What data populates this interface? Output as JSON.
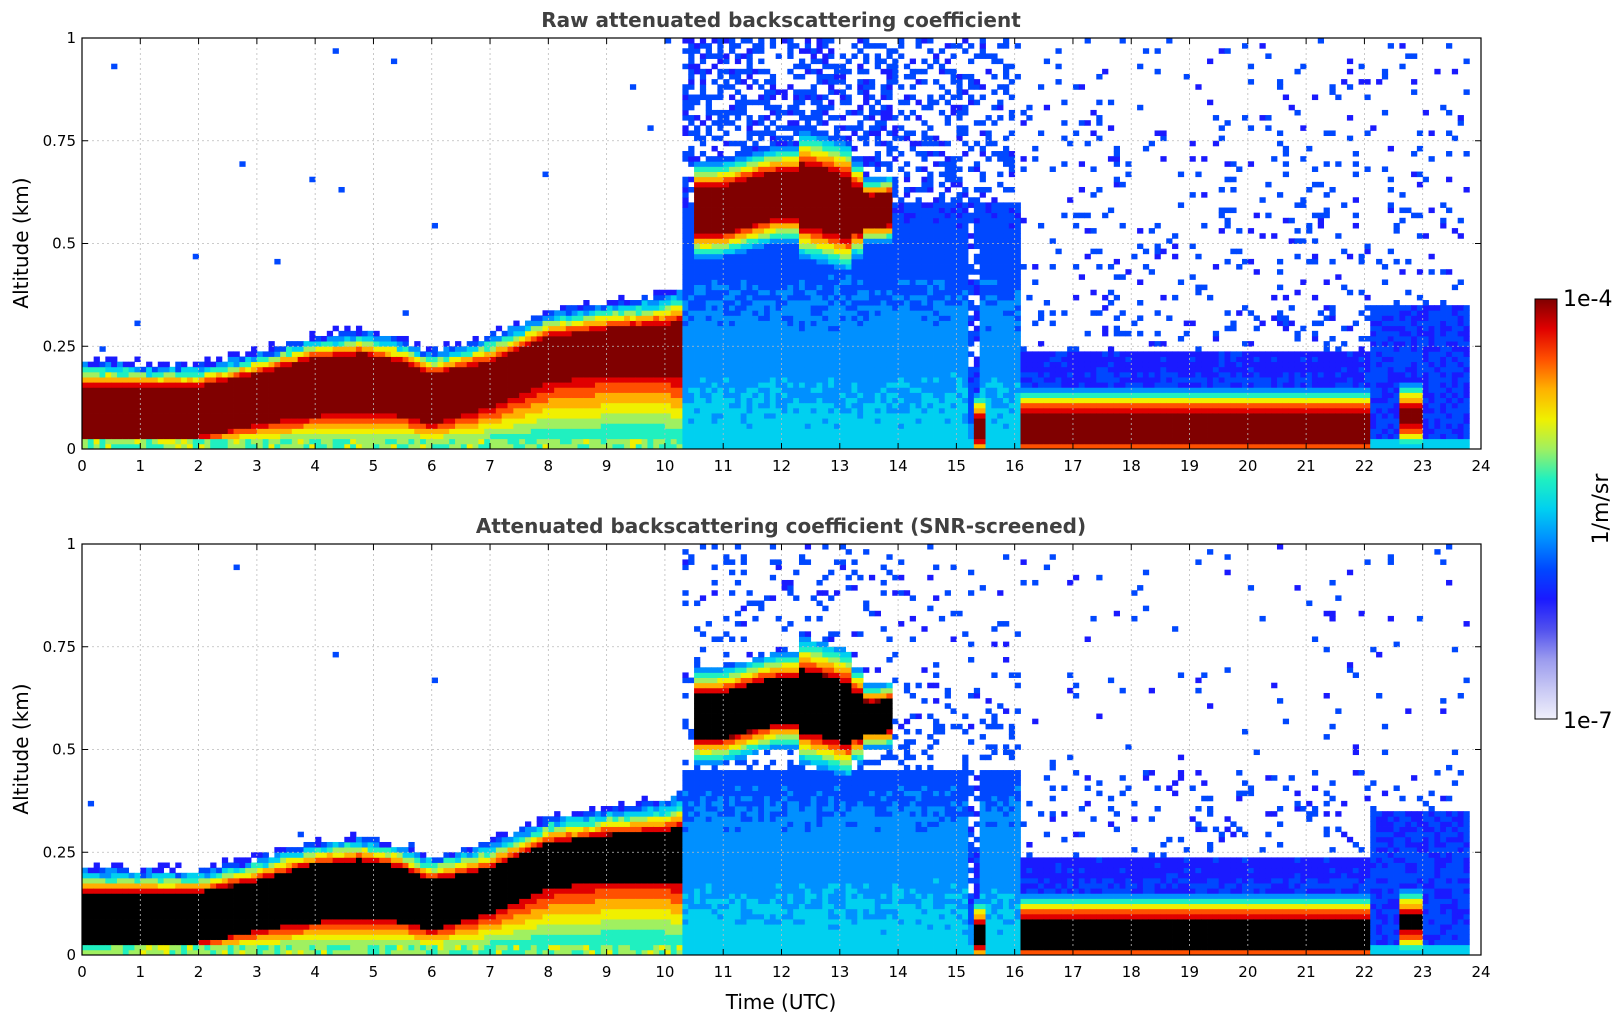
{
  "chart_data": [
    {
      "type": "heatmap",
      "title": "Raw attenuated backscattering coefficient",
      "xlabel": "",
      "ylabel": "Altitude (km)",
      "xlim": [
        0,
        24
      ],
      "ylim": [
        0,
        1
      ],
      "xticks": [
        "0",
        "1",
        "2",
        "3",
        "4",
        "5",
        "6",
        "7",
        "8",
        "9",
        "10",
        "11",
        "12",
        "13",
        "14",
        "15",
        "16",
        "17",
        "18",
        "19",
        "20",
        "21",
        "22",
        "23",
        "24"
      ],
      "yticks": [
        "0",
        "0.25",
        "0.5",
        "0.75",
        "1"
      ],
      "grid": true,
      "data_end_utc": 23.8,
      "features": [
        {
          "name": "boundary layer aerosol",
          "time": [
            0,
            2,
            4.5,
            6,
            8,
            10.3
          ],
          "top_km": [
            0.22,
            0.21,
            0.29,
            0.25,
            0.33,
            0.4
          ],
          "core_km": [
            [
              0.03,
              0.16
            ],
            [
              0.03,
              0.16
            ],
            [
              0.08,
              0.24
            ],
            [
              0.08,
              0.2
            ],
            [
              0.16,
              0.28
            ],
            [
              0.17,
              0.3
            ]
          ]
        },
        {
          "name": "elevated layer",
          "time": [
            10.5,
            13.8
          ],
          "center_km": 0.6,
          "top_km": 0.74
        },
        {
          "name": "low cloud",
          "time": [
            16.1,
            22.1
          ],
          "center_km": 0.05
        },
        {
          "name": "low cloud",
          "time": [
            15.3,
            15.5
          ],
          "center_km": 0.05
        },
        {
          "name": "low cloud",
          "time": [
            22.6,
            23.0
          ],
          "center_km": 0.08
        },
        {
          "name": "noise region",
          "time": [
            10.3,
            23.8
          ],
          "top_km": 1.0
        }
      ]
    },
    {
      "type": "heatmap",
      "title": "Attenuated backscattering coefficient (SNR-screened)",
      "xlabel": "Time (UTC)",
      "ylabel": "Altitude (km)",
      "xlim": [
        0,
        24
      ],
      "ylim": [
        0,
        1
      ],
      "xticks": [
        "0",
        "1",
        "2",
        "3",
        "4",
        "5",
        "6",
        "7",
        "8",
        "9",
        "10",
        "11",
        "12",
        "13",
        "14",
        "15",
        "16",
        "17",
        "18",
        "19",
        "20",
        "21",
        "22",
        "23",
        "24"
      ],
      "yticks": [
        "0",
        "0.25",
        "0.5",
        "0.75",
        "1"
      ],
      "grid": true,
      "data_end_utc": 23.8,
      "saturated_color": "#000000"
    }
  ],
  "colorbar": {
    "label": "1/m/sr",
    "max_label": "1e-4",
    "min_label": "1e-7",
    "stops": [
      "#f0f0fb",
      "#c8c8f4",
      "#9a9aee",
      "#5050ee",
      "#1a1aff",
      "#0048ff",
      "#0090ff",
      "#00d0f0",
      "#20f0c0",
      "#a0f060",
      "#f0f000",
      "#ffb000",
      "#ff5000",
      "#e00000",
      "#800000"
    ]
  }
}
